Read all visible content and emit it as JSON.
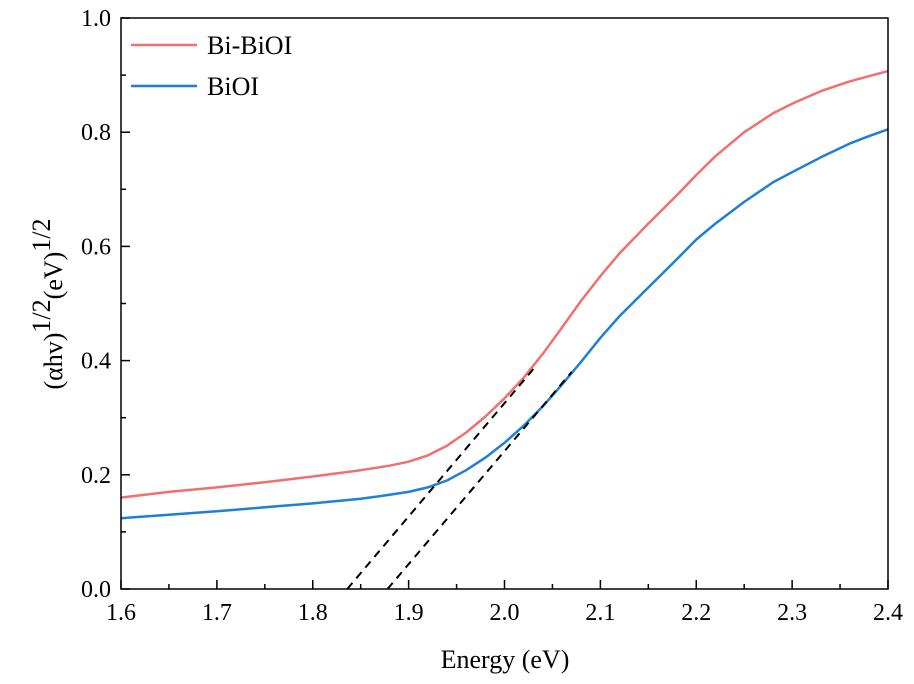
{
  "chart_data": {
    "type": "line",
    "xlabel": "Energy (eV)",
    "ylabel_base": "(αhv)",
    "ylabel_sup1": "1/2",
    "ylabel_mid": "(eV)",
    "ylabel_sup2": "1/2",
    "xlim": [
      1.6,
      2.4
    ],
    "ylim": [
      0.0,
      1.0
    ],
    "x_ticks": [
      "1.6",
      "1.7",
      "1.8",
      "1.9",
      "2.0",
      "2.1",
      "2.2",
      "2.3",
      "2.4"
    ],
    "y_ticks": [
      "0.0",
      "0.2",
      "0.4",
      "0.6",
      "0.8",
      "1.0"
    ],
    "grid": false,
    "legend_position": "top-left",
    "series": [
      {
        "name": "Bi-BiOI",
        "color": "#f07070",
        "x": [
          1.6,
          1.65,
          1.7,
          1.75,
          1.8,
          1.85,
          1.88,
          1.9,
          1.92,
          1.94,
          1.96,
          1.98,
          2.0,
          2.02,
          2.04,
          2.06,
          2.08,
          2.1,
          2.12,
          2.15,
          2.18,
          2.2,
          2.22,
          2.25,
          2.28,
          2.3,
          2.33,
          2.36,
          2.38,
          2.4
        ],
        "y": [
          0.16,
          0.17,
          0.178,
          0.187,
          0.197,
          0.208,
          0.216,
          0.223,
          0.234,
          0.251,
          0.274,
          0.302,
          0.334,
          0.37,
          0.412,
          0.458,
          0.505,
          0.548,
          0.588,
          0.64,
          0.69,
          0.725,
          0.758,
          0.8,
          0.833,
          0.85,
          0.872,
          0.889,
          0.898,
          0.907
        ]
      },
      {
        "name": "BiOI",
        "color": "#1f7fd6",
        "x": [
          1.6,
          1.65,
          1.7,
          1.75,
          1.8,
          1.85,
          1.88,
          1.9,
          1.92,
          1.94,
          1.96,
          1.98,
          2.0,
          2.02,
          2.04,
          2.06,
          2.08,
          2.1,
          2.12,
          2.15,
          2.18,
          2.2,
          2.22,
          2.25,
          2.28,
          2.3,
          2.33,
          2.36,
          2.38,
          2.4
        ],
        "y": [
          0.124,
          0.13,
          0.136,
          0.143,
          0.15,
          0.158,
          0.165,
          0.17,
          0.178,
          0.19,
          0.208,
          0.23,
          0.256,
          0.286,
          0.32,
          0.358,
          0.398,
          0.44,
          0.478,
          0.528,
          0.578,
          0.612,
          0.64,
          0.678,
          0.712,
          0.73,
          0.756,
          0.78,
          0.793,
          0.805
        ]
      }
    ],
    "tangent_lines": [
      {
        "series": "Bi-BiOI",
        "x": [
          1.836,
          2.03
        ],
        "y": [
          0.0,
          0.385
        ]
      },
      {
        "series": "BiOI",
        "x": [
          1.878,
          2.07
        ],
        "y": [
          0.0,
          0.38
        ]
      }
    ]
  }
}
